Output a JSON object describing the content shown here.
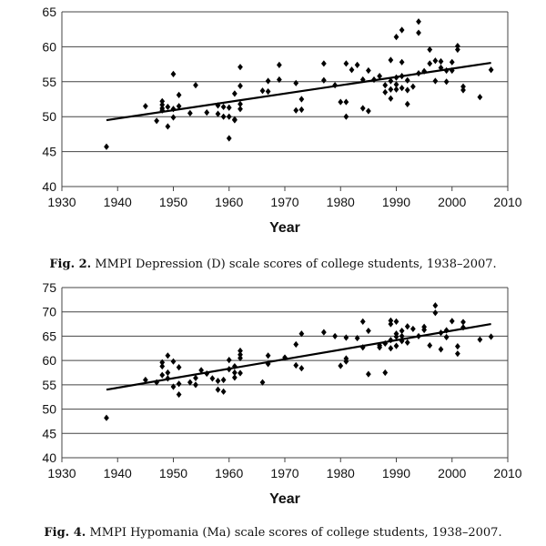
{
  "chart_data": [
    {
      "type": "scatter",
      "id": "depression",
      "title": "",
      "xlabel": "Year",
      "ylabel": "",
      "xlim": [
        1930,
        2010
      ],
      "ylim": [
        40,
        65
      ],
      "xticks": [
        "1930",
        "1940",
        "1950",
        "1960",
        "1970",
        "1980",
        "1990",
        "2000",
        "2010"
      ],
      "yticks": [
        "40",
        "45",
        "50",
        "55",
        "60",
        "65"
      ],
      "grid": "horizontal",
      "caption_label": "Fig. 2.",
      "caption_text": "MMPI Depression (D) scale scores of college students, 1938–2007.",
      "trendline": {
        "x": [
          1938,
          2007
        ],
        "y": [
          49.5,
          57.7
        ]
      },
      "points": [
        [
          1938,
          45.7
        ],
        [
          1945,
          51.5
        ],
        [
          1947,
          49.4
        ],
        [
          1948,
          52.2
        ],
        [
          1948,
          51.7
        ],
        [
          1948,
          51.2
        ],
        [
          1948,
          50.9
        ],
        [
          1949,
          51.4
        ],
        [
          1949,
          48.6
        ],
        [
          1950,
          51.1
        ],
        [
          1950,
          56.1
        ],
        [
          1950,
          49.9
        ],
        [
          1951,
          53.1
        ],
        [
          1951,
          51.5
        ],
        [
          1953,
          50.5
        ],
        [
          1954,
          54.5
        ],
        [
          1956,
          50.6
        ],
        [
          1958,
          51.6
        ],
        [
          1958,
          50.4
        ],
        [
          1959,
          51.4
        ],
        [
          1959,
          50.0
        ],
        [
          1960,
          51.3
        ],
        [
          1960,
          50.0
        ],
        [
          1960,
          46.9
        ],
        [
          1961,
          53.3
        ],
        [
          1961,
          49.6
        ],
        [
          1961,
          49.5
        ],
        [
          1962,
          54.4
        ],
        [
          1962,
          57.1
        ],
        [
          1962,
          51.8
        ],
        [
          1962,
          51.1
        ],
        [
          1966,
          53.7
        ],
        [
          1967,
          53.6
        ],
        [
          1967,
          55.1
        ],
        [
          1969,
          55.3
        ],
        [
          1969,
          57.4
        ],
        [
          1972,
          54.8
        ],
        [
          1972,
          50.9
        ],
        [
          1973,
          52.5
        ],
        [
          1973,
          51.0
        ],
        [
          1977,
          57.6
        ],
        [
          1977,
          55.2
        ],
        [
          1979,
          54.5
        ],
        [
          1980,
          52.1
        ],
        [
          1981,
          57.6
        ],
        [
          1981,
          52.1
        ],
        [
          1981,
          50.0
        ],
        [
          1982,
          56.7
        ],
        [
          1983,
          57.4
        ],
        [
          1984,
          55.3
        ],
        [
          1984,
          51.2
        ],
        [
          1985,
          56.6
        ],
        [
          1985,
          50.8
        ],
        [
          1986,
          55.3
        ],
        [
          1987,
          55.8
        ],
        [
          1988,
          54.5
        ],
        [
          1988,
          53.5
        ],
        [
          1989,
          58.1
        ],
        [
          1989,
          55.1
        ],
        [
          1989,
          53.9
        ],
        [
          1989,
          52.6
        ],
        [
          1990,
          55.6
        ],
        [
          1990,
          54.6
        ],
        [
          1990,
          53.9
        ],
        [
          1990,
          61.4
        ],
        [
          1991,
          62.4
        ],
        [
          1991,
          57.8
        ],
        [
          1991,
          55.8
        ],
        [
          1991,
          54.1
        ],
        [
          1992,
          55.2
        ],
        [
          1992,
          51.8
        ],
        [
          1992,
          53.8
        ],
        [
          1993,
          54.3
        ],
        [
          1994,
          63.6
        ],
        [
          1994,
          62.0
        ],
        [
          1994,
          56.2
        ],
        [
          1995,
          56.5
        ],
        [
          1996,
          59.6
        ],
        [
          1996,
          57.6
        ],
        [
          1997,
          58.0
        ],
        [
          1997,
          55.1
        ],
        [
          1998,
          57.0
        ],
        [
          1998,
          57.9
        ],
        [
          1999,
          56.6
        ],
        [
          1999,
          55.0
        ],
        [
          2000,
          56.6
        ],
        [
          2000,
          57.8
        ],
        [
          2001,
          59.6
        ],
        [
          2001,
          60.1
        ],
        [
          2002,
          54.3
        ],
        [
          2002,
          53.8
        ],
        [
          2005,
          52.8
        ],
        [
          2007,
          56.7
        ]
      ]
    },
    {
      "type": "scatter",
      "id": "hypomania",
      "title": "",
      "xlabel": "Year",
      "ylabel": "",
      "xlim": [
        1930,
        2010
      ],
      "ylim": [
        40,
        75
      ],
      "xticks": [
        "1930",
        "1940",
        "1950",
        "1960",
        "1970",
        "1980",
        "1990",
        "2000",
        "2010"
      ],
      "yticks": [
        "40",
        "45",
        "50",
        "55",
        "60",
        "65",
        "70",
        "75"
      ],
      "grid": "horizontal",
      "caption_label": "Fig. 4.",
      "caption_text": "MMPI Hypomania (Ma) scale scores of college students, 1938–2007.",
      "trendline": {
        "x": [
          1938,
          2007
        ],
        "y": [
          54.0,
          67.5
        ]
      },
      "points": [
        [
          1938,
          48.2
        ],
        [
          1945,
          56.0
        ],
        [
          1947,
          55.5
        ],
        [
          1948,
          57.0
        ],
        [
          1948,
          58.8
        ],
        [
          1948,
          59.6
        ],
        [
          1949,
          57.5
        ],
        [
          1949,
          56.3
        ],
        [
          1949,
          61.0
        ],
        [
          1950,
          59.8
        ],
        [
          1950,
          54.6
        ],
        [
          1951,
          55.2
        ],
        [
          1951,
          53.0
        ],
        [
          1951,
          58.6
        ],
        [
          1953,
          55.5
        ],
        [
          1954,
          55.0
        ],
        [
          1954,
          56.4
        ],
        [
          1955,
          58.0
        ],
        [
          1956,
          57.3
        ],
        [
          1957,
          56.3
        ],
        [
          1958,
          55.8
        ],
        [
          1958,
          54.0
        ],
        [
          1959,
          56.0
        ],
        [
          1959,
          53.6
        ],
        [
          1960,
          58.2
        ],
        [
          1960,
          60.1
        ],
        [
          1961,
          56.5
        ],
        [
          1961,
          57.5
        ],
        [
          1961,
          58.8
        ],
        [
          1962,
          57.4
        ],
        [
          1962,
          62.0
        ],
        [
          1962,
          61.2
        ],
        [
          1962,
          60.5
        ],
        [
          1966,
          55.5
        ],
        [
          1967,
          59.3
        ],
        [
          1967,
          61.0
        ],
        [
          1970,
          60.6
        ],
        [
          1972,
          59.0
        ],
        [
          1972,
          63.3
        ],
        [
          1973,
          58.4
        ],
        [
          1973,
          65.5
        ],
        [
          1977,
          65.8
        ],
        [
          1979,
          65.0
        ],
        [
          1980,
          58.9
        ],
        [
          1981,
          64.7
        ],
        [
          1981,
          60.4
        ],
        [
          1981,
          59.8
        ],
        [
          1983,
          64.6
        ],
        [
          1984,
          68.0
        ],
        [
          1984,
          62.7
        ],
        [
          1985,
          66.1
        ],
        [
          1985,
          57.2
        ],
        [
          1987,
          63.1
        ],
        [
          1987,
          62.7
        ],
        [
          1988,
          63.5
        ],
        [
          1988,
          57.5
        ],
        [
          1989,
          68.2
        ],
        [
          1989,
          67.5
        ],
        [
          1989,
          64.2
        ],
        [
          1989,
          62.5
        ],
        [
          1990,
          68.0
        ],
        [
          1990,
          65.5
        ],
        [
          1990,
          64.9
        ],
        [
          1990,
          63.0
        ],
        [
          1991,
          66.1
        ],
        [
          1991,
          65.0
        ],
        [
          1991,
          64.0
        ],
        [
          1992,
          67.0
        ],
        [
          1992,
          63.7
        ],
        [
          1993,
          66.5
        ],
        [
          1994,
          65.0
        ],
        [
          1995,
          66.3
        ],
        [
          1995,
          66.9
        ],
        [
          1996,
          63.1
        ],
        [
          1997,
          69.8
        ],
        [
          1997,
          71.3
        ],
        [
          1998,
          65.7
        ],
        [
          1998,
          62.3
        ],
        [
          1999,
          64.8
        ],
        [
          1999,
          66.2
        ],
        [
          2000,
          68.1
        ],
        [
          2001,
          62.9
        ],
        [
          2001,
          61.4
        ],
        [
          2002,
          66.8
        ],
        [
          2002,
          67.9
        ],
        [
          2005,
          64.3
        ],
        [
          2007,
          64.9
        ]
      ]
    }
  ]
}
